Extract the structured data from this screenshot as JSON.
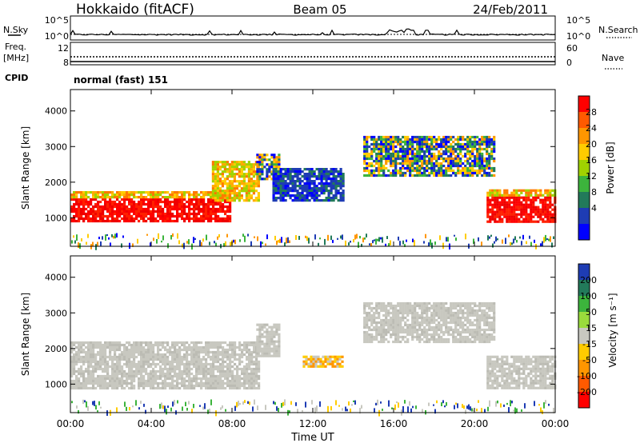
{
  "header": {
    "station": "Hokkaido (fitACF)",
    "beam": "Beam 05",
    "date": "24/Feb/2011"
  },
  "noise_panel": {
    "left_label": "N.Sky",
    "right_label": "N.Search",
    "left_ticks": [
      "10^5",
      "10^0"
    ],
    "right_ticks": [
      "10^5",
      "10^0"
    ]
  },
  "freq_panel": {
    "left_label_1": "Freq.",
    "left_label_2": "[MHz]",
    "left_ticks": [
      "12",
      "8"
    ],
    "right_label": "Nave",
    "right_ticks": [
      "60",
      "0"
    ]
  },
  "cpid": {
    "label": "CPID",
    "value": "normal (fast) 151"
  },
  "x_axis": {
    "label": "Time UT",
    "ticks": [
      "00:00",
      "04:00",
      "08:00",
      "12:00",
      "16:00",
      "20:00",
      "00:00"
    ]
  },
  "power_colorbar": {
    "label": "Power [dB]",
    "ticks": [
      "28",
      "24",
      "20",
      "16",
      "12",
      "8",
      "4"
    ],
    "colors": [
      "#ff0000",
      "#ff5a00",
      "#ff9600",
      "#ffcc00",
      "#a0d200",
      "#3cb43c",
      "#227a5a",
      "#1e3cb4",
      "#0000ff"
    ]
  },
  "velocity_colorbar": {
    "label": "Velocity [m s⁻¹]",
    "ticks": [
      "200",
      "100",
      "50",
      "15",
      "-15",
      "-50",
      "-100",
      "-200"
    ],
    "colors": [
      "#1e3cb4",
      "#227a5a",
      "#3cb43c",
      "#9adc3c",
      "#c8c8c0",
      "#ffcc00",
      "#ff9600",
      "#ff5a00",
      "#ff0000"
    ]
  },
  "chart_data": [
    {
      "type": "heatmap",
      "title": "Power",
      "ylabel": "Slant Range [km]",
      "yticks": [
        "1000",
        "2000",
        "3000",
        "4000"
      ],
      "ylim": [
        200,
        4600
      ],
      "xlim_hours": [
        0,
        24
      ],
      "regions": [
        {
          "t0": 0.0,
          "t1": 7.9,
          "r0": 900,
          "r1": 1550,
          "level": "red"
        },
        {
          "t0": 0.0,
          "t1": 7.9,
          "r0": 1550,
          "r1": 1750,
          "level": "orange"
        },
        {
          "t0": 7.0,
          "t1": 9.3,
          "r0": 1500,
          "r1": 2600,
          "level": "orange"
        },
        {
          "t0": 9.2,
          "t1": 10.3,
          "r0": 2100,
          "r1": 2800,
          "level": "mixed"
        },
        {
          "t0": 10.0,
          "t1": 13.5,
          "r0": 1500,
          "r1": 2400,
          "level": "blue"
        },
        {
          "t0": 14.5,
          "t1": 21.0,
          "r0": 2200,
          "r1": 3300,
          "level": "mixed"
        },
        {
          "t0": 20.6,
          "t1": 24.0,
          "r0": 900,
          "r1": 1600,
          "level": "red"
        },
        {
          "t0": 20.6,
          "t1": 24.0,
          "r0": 1600,
          "r1": 1800,
          "level": "orange"
        }
      ]
    },
    {
      "type": "heatmap",
      "title": "Velocity",
      "ylabel": "Slant Range [km]",
      "yticks": [
        "1000",
        "2000",
        "3000",
        "4000"
      ],
      "ylim": [
        200,
        4600
      ],
      "xlim_hours": [
        0,
        24
      ],
      "regions": [
        {
          "t0": 0.0,
          "t1": 9.3,
          "r0": 900,
          "r1": 2200,
          "level": "gray"
        },
        {
          "t0": 9.2,
          "t1": 10.3,
          "r0": 1800,
          "r1": 2700,
          "level": "gray"
        },
        {
          "t0": 11.5,
          "t1": 13.5,
          "r0": 1500,
          "r1": 1800,
          "level": "orange"
        },
        {
          "t0": 14.5,
          "t1": 21.0,
          "r0": 2200,
          "r1": 3300,
          "level": "gray"
        },
        {
          "t0": 20.6,
          "t1": 24.0,
          "r0": 900,
          "r1": 1800,
          "level": "gray"
        }
      ]
    }
  ]
}
